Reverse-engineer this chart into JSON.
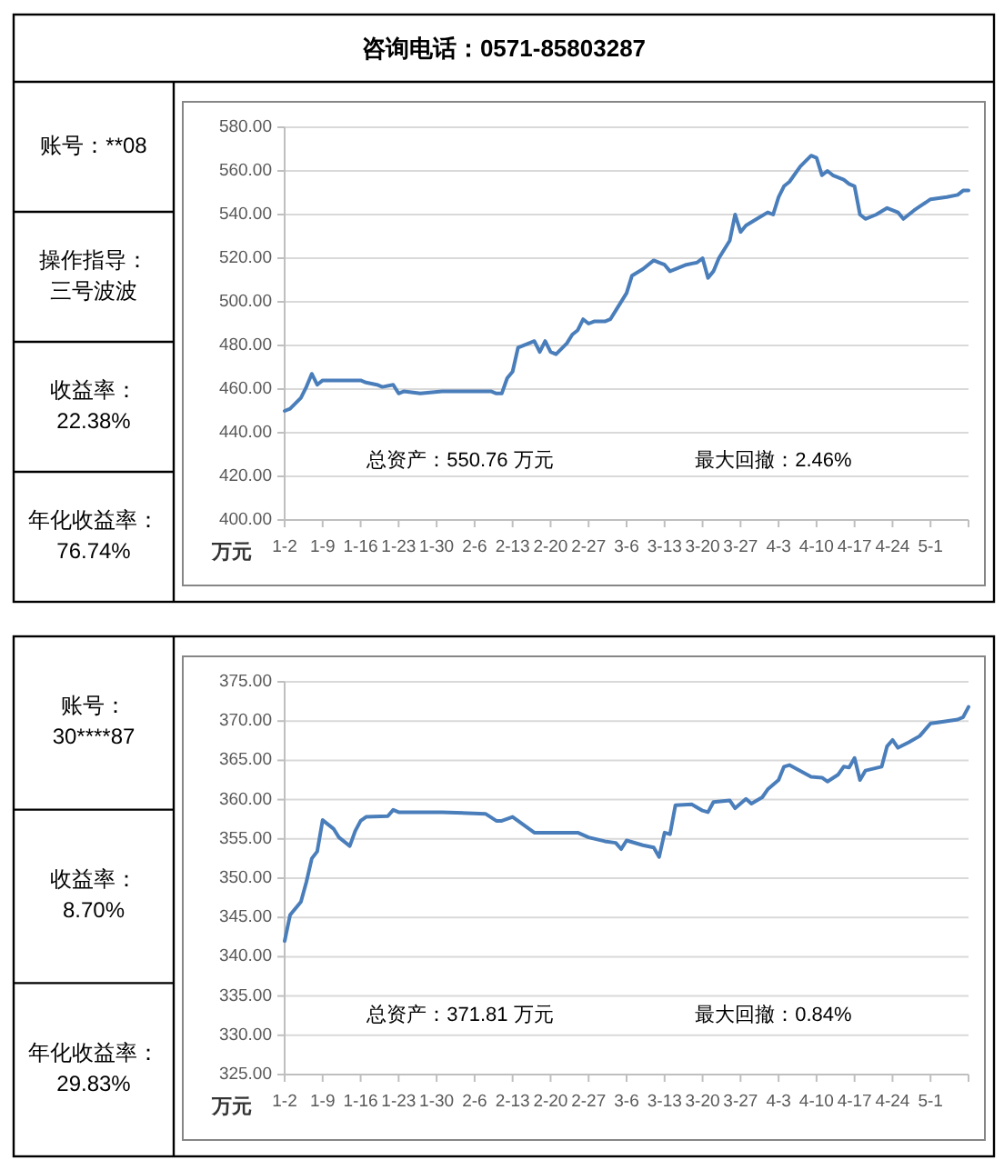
{
  "chart_data": [
    {
      "type": "other",
      "title": "咨询电话：0571-85803287",
      "annotations": [
        "账号：**08",
        "操作指导：三号波波",
        "收益率：22.38%",
        "年化收益率：76.74%"
      ]
    },
    {
      "type": "line",
      "ylabel": "万元",
      "color": "#4a7ebb",
      "grid": "y",
      "x": [
        "--01-02",
        "--01-03",
        "--01-05",
        "--01-06",
        "--01-07",
        "--01-08",
        "--01-09",
        "--01-12",
        "--01-13",
        "--01-16",
        "--01-17",
        "--01-19",
        "--01-20",
        "--01-22",
        "--01-23",
        "--01-24",
        "--01-27",
        "--01-31",
        "--02-09",
        "--02-10",
        "--02-11",
        "--02-12",
        "--02-13",
        "--02-14",
        "--02-16",
        "--02-17",
        "--02-18",
        "--02-19",
        "--02-20",
        "--02-21",
        "--02-23",
        "--02-24",
        "--02-25",
        "--02-26",
        "--02-27",
        "--02-28",
        "--03-02",
        "--03-03",
        "--03-04",
        "--03-06",
        "--03-07",
        "--03-09",
        "--03-11",
        "--03-12",
        "--03-13",
        "--03-14",
        "--03-17",
        "--03-19",
        "--03-20",
        "--03-21",
        "--03-22",
        "--03-23",
        "--03-25",
        "--03-26",
        "--03-27",
        "--03-28",
        "--03-30",
        "--04-01",
        "--04-02",
        "--04-03",
        "--04-04",
        "--04-05",
        "--04-07",
        "--04-09",
        "--04-10",
        "--04-11",
        "--04-12",
        "--04-13",
        "--04-15",
        "--04-16",
        "--04-17",
        "--04-18",
        "--04-19",
        "--04-21",
        "--04-23",
        "--04-25",
        "--04-26",
        "--04-28",
        "--05-01",
        "--05-04",
        "--05-06",
        "--05-07",
        "--05-08"
      ],
      "values": [
        450,
        451,
        456,
        461,
        467,
        462,
        464,
        464,
        464,
        464,
        463,
        462,
        461,
        462,
        458,
        459,
        458,
        459,
        459,
        458,
        458,
        465,
        468,
        479,
        481,
        482,
        477,
        482,
        477,
        476,
        481,
        485,
        487,
        492,
        490,
        491,
        491,
        492,
        496,
        504,
        512,
        515,
        519,
        518,
        517,
        514,
        517,
        518,
        520,
        511,
        514,
        520,
        528,
        540,
        532,
        535,
        538,
        541,
        540,
        548,
        553,
        555,
        562,
        567,
        566,
        558,
        560,
        558,
        556,
        554,
        553,
        540,
        538,
        540,
        543,
        541,
        538,
        542,
        547,
        548,
        549,
        551,
        551
      ],
      "xlim": [
        "--01-02",
        "--05-08"
      ],
      "xticks": [
        {
          "value": "--01-02",
          "label": "1-2"
        },
        {
          "value": "--01-09",
          "label": "1-9"
        },
        {
          "value": "--01-16",
          "label": "1-16"
        },
        {
          "value": "--01-23",
          "label": "1-23"
        },
        {
          "value": "--01-30",
          "label": "1-30"
        },
        {
          "value": "--02-06",
          "label": "2-6"
        },
        {
          "value": "--02-13",
          "label": "2-13"
        },
        {
          "value": "--02-20",
          "label": "2-20"
        },
        {
          "value": "--02-27",
          "label": "2-27"
        },
        {
          "value": "--03-06",
          "label": "3-6"
        },
        {
          "value": "--03-13",
          "label": "3-13"
        },
        {
          "value": "--03-20",
          "label": "3-20"
        },
        {
          "value": "--03-27",
          "label": "3-27"
        },
        {
          "value": "--04-03",
          "label": "4-3"
        },
        {
          "value": "--04-10",
          "label": "4-10"
        },
        {
          "value": "--04-17",
          "label": "4-17"
        },
        {
          "value": "--04-24",
          "label": "4-24"
        },
        {
          "value": "--05-01",
          "label": "5-1"
        },
        {
          "value": "--05-08",
          "label": null
        }
      ],
      "ylim": [
        400,
        580
      ],
      "yticks": [
        {
          "value": 400,
          "label": "400.00"
        },
        {
          "value": 420,
          "label": "420.00"
        },
        {
          "value": 440,
          "label": "440.00"
        },
        {
          "value": 460,
          "label": "460.00"
        },
        {
          "value": 480,
          "label": "480.00"
        },
        {
          "value": 500,
          "label": "500.00"
        },
        {
          "value": 520,
          "label": "520.00"
        },
        {
          "value": 540,
          "label": "540.00"
        },
        {
          "value": 560,
          "label": "560.00"
        },
        {
          "value": 580,
          "label": "580.00"
        }
      ],
      "annotations": [
        "总资产：550.76 万元",
        "最大回撤：2.46%"
      ]
    },
    {
      "type": "other",
      "annotations": [
        "账号：30****87",
        "收益率：8.70%",
        "年化收益率：29.83%"
      ]
    },
    {
      "type": "line",
      "ylabel": "万元",
      "color": "#4a7ebb",
      "grid": "y",
      "x": [
        "--01-02",
        "--01-03",
        "--01-05",
        "--01-06",
        "--01-07",
        "--01-08",
        "--01-09",
        "--01-11",
        "--01-12",
        "--01-14",
        "--01-15",
        "--01-16",
        "--01-17",
        "--01-21",
        "--01-22",
        "--01-23",
        "--01-31",
        "--02-08",
        "--02-10",
        "--02-11",
        "--02-13",
        "--02-17",
        "--02-25",
        "--02-27",
        "--03-02",
        "--03-04",
        "--03-05",
        "--03-06",
        "--03-09",
        "--03-11",
        "--03-12",
        "--03-13",
        "--03-14",
        "--03-15",
        "--03-18",
        "--03-20",
        "--03-21",
        "--03-22",
        "--03-25",
        "--03-26",
        "--03-28",
        "--03-29",
        "--03-31",
        "--04-01",
        "--04-03",
        "--04-04",
        "--04-05",
        "--04-09",
        "--04-11",
        "--04-12",
        "--04-14",
        "--04-15",
        "--04-16",
        "--04-17",
        "--04-18",
        "--04-19",
        "--04-22",
        "--04-23",
        "--04-24",
        "--04-25",
        "--04-27",
        "--04-29",
        "--05-01",
        "--05-02",
        "--05-06",
        "--05-07",
        "--05-08"
      ],
      "values": [
        342,
        345.3,
        347,
        349.5,
        352.5,
        353.4,
        357.4,
        356.3,
        355.2,
        354.1,
        356,
        357.3,
        357.8,
        357.9,
        358.7,
        358.4,
        358.4,
        358.2,
        357.3,
        357.3,
        357.8,
        355.8,
        355.8,
        355.2,
        354.7,
        354.5,
        353.7,
        354.8,
        354.2,
        353.9,
        352.7,
        355.8,
        355.6,
        359.3,
        359.4,
        358.6,
        358.4,
        359.7,
        359.9,
        358.9,
        360.1,
        359.5,
        360.3,
        361.3,
        362.5,
        364.2,
        364.4,
        362.9,
        362.8,
        362.3,
        363.2,
        364.2,
        364.1,
        365.3,
        362.5,
        363.7,
        364.2,
        366.8,
        367.6,
        366.6,
        367.3,
        368.1,
        369.7,
        369.8,
        370.2,
        370.5,
        371.8
      ],
      "xlim": [
        "--01-02",
        "--05-08"
      ],
      "xticks": [
        {
          "value": "--01-02",
          "label": "1-2"
        },
        {
          "value": "--01-09",
          "label": "1-9"
        },
        {
          "value": "--01-16",
          "label": "1-16"
        },
        {
          "value": "--01-23",
          "label": "1-23"
        },
        {
          "value": "--01-30",
          "label": "1-30"
        },
        {
          "value": "--02-06",
          "label": "2-6"
        },
        {
          "value": "--02-13",
          "label": "2-13"
        },
        {
          "value": "--02-20",
          "label": "2-20"
        },
        {
          "value": "--02-27",
          "label": "2-27"
        },
        {
          "value": "--03-06",
          "label": "3-6"
        },
        {
          "value": "--03-13",
          "label": "3-13"
        },
        {
          "value": "--03-20",
          "label": "3-20"
        },
        {
          "value": "--03-27",
          "label": "3-27"
        },
        {
          "value": "--04-03",
          "label": "4-3"
        },
        {
          "value": "--04-10",
          "label": "4-10"
        },
        {
          "value": "--04-17",
          "label": "4-17"
        },
        {
          "value": "--04-24",
          "label": "4-24"
        },
        {
          "value": "--05-01",
          "label": "5-1"
        },
        {
          "value": "--05-08",
          "label": null
        }
      ],
      "ylim": [
        325,
        375
      ],
      "yticks": [
        {
          "value": 325,
          "label": "325.00"
        },
        {
          "value": 330,
          "label": "330.00"
        },
        {
          "value": 335,
          "label": "335.00"
        },
        {
          "value": 340,
          "label": "340.00"
        },
        {
          "value": 345,
          "label": "345.00"
        },
        {
          "value": 350,
          "label": "350.00"
        },
        {
          "value": 355,
          "label": "355.00"
        },
        {
          "value": 360,
          "label": "360.00"
        },
        {
          "value": 365,
          "label": "365.00"
        },
        {
          "value": 370,
          "label": "370.00"
        },
        {
          "value": 375,
          "label": "375.00"
        }
      ],
      "annotations": [
        "总资产：371.81 万元",
        "最大回撤：0.84%"
      ]
    }
  ]
}
